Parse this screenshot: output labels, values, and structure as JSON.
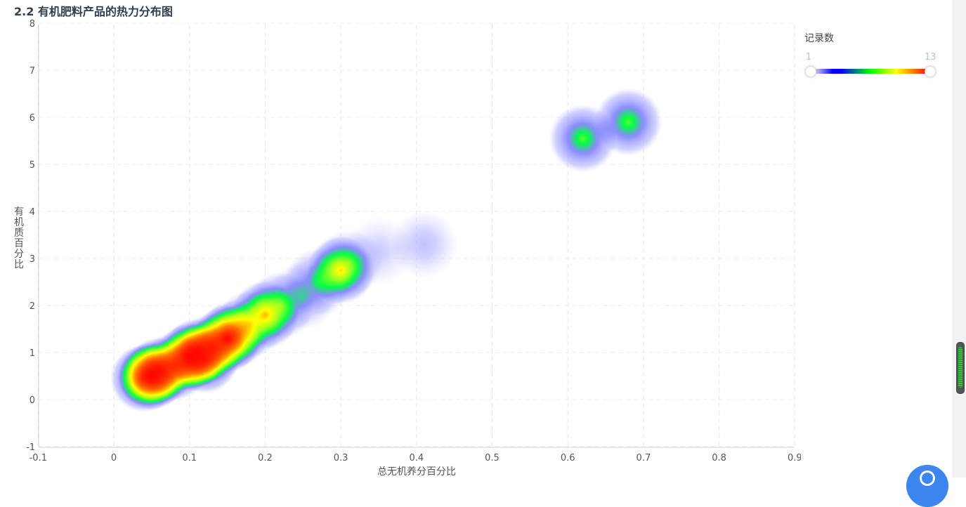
{
  "page": {
    "title": "2.2 有机肥料产品的热力分布图"
  },
  "chart_data": {
    "type": "heatmap",
    "title": "",
    "xlabel": "总无机养分百分比",
    "ylabel": "有机质百分比",
    "xlim": [
      -0.1,
      0.9
    ],
    "ylim": [
      -1,
      8
    ],
    "xticks": [
      "-0.1",
      "0",
      "0.1",
      "0.2",
      "0.3",
      "0.4",
      "0.5",
      "0.6",
      "0.7",
      "0.8",
      "0.9"
    ],
    "yticks": [
      "-1",
      "0",
      "1",
      "2",
      "3",
      "4",
      "5",
      "6",
      "7",
      "8"
    ],
    "grid": true,
    "grid_style": "dashed",
    "points": [
      {
        "x": 0.05,
        "y": 0.5,
        "count": 13
      },
      {
        "x": 0.06,
        "y": 0.6,
        "count": 12
      },
      {
        "x": 0.04,
        "y": 0.45,
        "count": 10
      },
      {
        "x": 0.08,
        "y": 0.7,
        "count": 9
      },
      {
        "x": 0.1,
        "y": 0.9,
        "count": 13
      },
      {
        "x": 0.11,
        "y": 1.0,
        "count": 12
      },
      {
        "x": 0.12,
        "y": 0.85,
        "count": 10
      },
      {
        "x": 0.13,
        "y": 1.1,
        "count": 9
      },
      {
        "x": 0.15,
        "y": 1.3,
        "count": 13
      },
      {
        "x": 0.16,
        "y": 1.4,
        "count": 8
      },
      {
        "x": 0.18,
        "y": 1.6,
        "count": 5
      },
      {
        "x": 0.2,
        "y": 1.8,
        "count": 9
      },
      {
        "x": 0.22,
        "y": 2.0,
        "count": 5
      },
      {
        "x": 0.25,
        "y": 2.2,
        "count": 3
      },
      {
        "x": 0.27,
        "y": 2.5,
        "count": 4
      },
      {
        "x": 0.3,
        "y": 2.75,
        "count": 9
      },
      {
        "x": 0.31,
        "y": 2.9,
        "count": 3
      },
      {
        "x": 0.35,
        "y": 3.15,
        "count": 1
      },
      {
        "x": 0.41,
        "y": 3.3,
        "count": 2
      },
      {
        "x": 0.62,
        "y": 5.55,
        "count": 7
      },
      {
        "x": 0.68,
        "y": 5.9,
        "count": 7
      }
    ],
    "legend": {
      "title": "记录数",
      "min": 1,
      "max": 13,
      "placement": "top-right",
      "colors": [
        "#ffffff",
        "#0000ff",
        "#00ff00",
        "#ffff00",
        "#ff0000"
      ]
    }
  }
}
